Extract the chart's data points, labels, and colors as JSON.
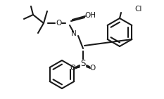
{
  "bg_color": "#ffffff",
  "line_color": "#1a1a1a",
  "line_width": 1.5,
  "font_size": 7.5,
  "labels": {
    "O_tbu": "O",
    "OH": "OH",
    "N": "N",
    "Cl": "Cl",
    "S": "S",
    "O1": "O",
    "O2": "O"
  }
}
